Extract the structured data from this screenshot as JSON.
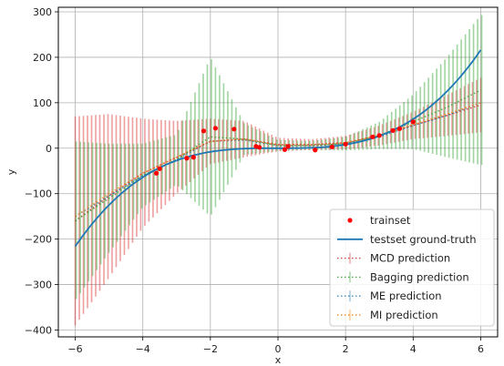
{
  "chart_data": {
    "type": "line",
    "title": "",
    "xlabel": "x",
    "ylabel": "y",
    "xlim": [
      -6.5,
      6.5
    ],
    "ylim": [
      -415,
      310
    ],
    "xticks": [
      -6,
      -4,
      -2,
      0,
      2,
      4,
      6
    ],
    "xtick_labels": [
      "−6",
      "−4",
      "−2",
      "0",
      "2",
      "4",
      "6"
    ],
    "yticks": [
      -400,
      -300,
      -200,
      -100,
      0,
      100,
      200,
      300
    ],
    "ytick_labels": [
      "−400",
      "−300",
      "−200",
      "−100",
      "0",
      "100",
      "200",
      "300"
    ],
    "grid": true,
    "legend_position": "lower-right",
    "trainset": {
      "name": "trainset",
      "color": "#ff0000",
      "x": [
        -3.6,
        -3.5,
        -2.7,
        -2.5,
        -2.2,
        -1.85,
        -1.3,
        -0.65,
        -0.55,
        0.2,
        0.3,
        1.1,
        1.6,
        2.0,
        2.8,
        3.0,
        3.4,
        3.6,
        4.0
      ],
      "y": [
        -55,
        -45,
        -22,
        -20,
        38,
        44,
        42,
        4,
        2,
        -3,
        4,
        -4,
        3,
        9,
        25,
        28,
        39,
        43,
        58
      ]
    },
    "ground_truth": {
      "name": "testset ground-truth",
      "color": "#1f77b4",
      "formula": "x^3"
    },
    "series": [
      {
        "name": "MCD prediction",
        "color": "#d62728",
        "x": [
          -6,
          -5,
          -4,
          -3,
          -2,
          -1,
          0,
          1,
          2,
          3,
          4,
          5,
          6
        ],
        "y": [
          -160,
          -105,
          -55,
          -20,
          15,
          20,
          8,
          8,
          12,
          28,
          50,
          72,
          95
        ],
        "err": [
          230,
          180,
          120,
          80,
          50,
          40,
          15,
          12,
          15,
          22,
          30,
          45,
          60
        ]
      },
      {
        "name": "Bagging prediction",
        "color": "#2ca02c",
        "x": [
          -6,
          -5,
          -4,
          -3,
          -2,
          -1,
          0,
          1,
          2,
          3,
          4,
          5,
          6
        ],
        "y": [
          -160,
          -110,
          -60,
          -25,
          25,
          20,
          6,
          6,
          10,
          28,
          58,
          90,
          128
        ],
        "err": [
          175,
          120,
          70,
          55,
          175,
          35,
          12,
          10,
          15,
          30,
          60,
          110,
          165
        ]
      },
      {
        "name": "ME prediction",
        "color": "#1f77b4",
        "x": [
          -6,
          -5,
          -4,
          -3,
          -2,
          -1,
          0,
          1,
          2,
          3,
          4,
          5,
          6
        ],
        "y": [
          -150,
          -105,
          -60,
          -25,
          15,
          18,
          6,
          6,
          10,
          25,
          50,
          72,
          100
        ],
        "err": [
          0,
          0,
          0,
          0,
          0,
          0,
          0,
          0,
          0,
          0,
          0,
          0,
          0
        ]
      },
      {
        "name": "MI prediction",
        "color": "#ff7f0e",
        "x": [
          -6,
          -5,
          -4,
          -3,
          -2,
          -1,
          0,
          1,
          2,
          3,
          4,
          5,
          6
        ],
        "y": [
          -150,
          -100,
          -55,
          -20,
          15,
          20,
          7,
          7,
          12,
          28,
          52,
          75,
          100
        ],
        "err": [
          0,
          0,
          0,
          0,
          0,
          0,
          0,
          0,
          0,
          0,
          0,
          0,
          0
        ]
      }
    ]
  }
}
